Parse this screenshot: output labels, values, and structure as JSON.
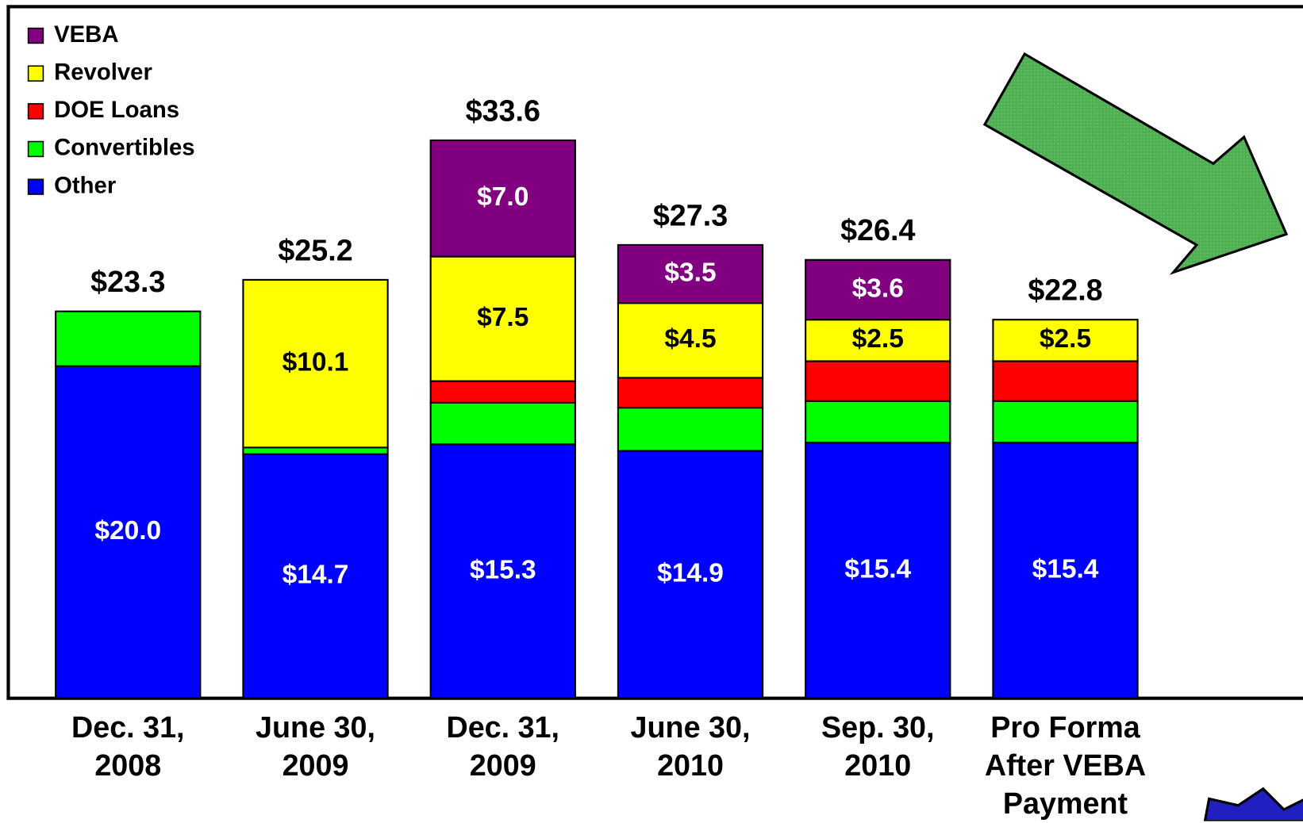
{
  "chart_data": {
    "type": "stacked_bar",
    "categories": [
      "Dec. 31, 2008",
      "June 30, 2009",
      "Dec. 31, 2009",
      "June 30, 2010",
      "Sep. 30, 2010",
      "Pro Forma After VEBA Payment"
    ],
    "series": [
      {
        "name": "Other",
        "color": "#0000ff",
        "values": [
          20.0,
          14.7,
          15.3,
          14.9,
          15.4,
          15.4
        ],
        "value_labels": [
          "$20.0",
          "$14.7",
          "$15.3",
          "$14.9",
          "$15.4",
          "$15.4"
        ]
      },
      {
        "name": "Convertibles",
        "color": "#00ff00",
        "values": [
          3.3,
          0.4,
          2.5,
          2.6,
          2.5,
          2.5
        ],
        "value_labels": [
          null,
          null,
          null,
          null,
          null,
          null
        ]
      },
      {
        "name": "DOE Loans",
        "color": "#ff0000",
        "values": [
          null,
          null,
          1.3,
          1.8,
          2.4,
          2.4
        ],
        "value_labels": [
          null,
          null,
          null,
          null,
          null,
          null
        ]
      },
      {
        "name": "Revolver",
        "color": "#ffff00",
        "values": [
          null,
          10.1,
          7.5,
          4.5,
          2.5,
          2.5
        ],
        "value_labels": [
          null,
          "$10.1",
          "$7.5",
          "$4.5",
          "$2.5",
          "$2.5"
        ]
      },
      {
        "name": "VEBA",
        "color": "#800080",
        "values": [
          null,
          null,
          7.0,
          3.5,
          3.6,
          null
        ],
        "value_labels": [
          null,
          null,
          "$7.0",
          "$3.5",
          "$3.6",
          null
        ]
      }
    ],
    "totals": [
      23.3,
      25.2,
      33.6,
      27.3,
      26.4,
      22.8
    ],
    "total_labels": [
      "$23.3",
      "$25.2",
      "$33.6",
      "$27.3",
      "$26.4",
      "$22.8"
    ],
    "legend": "top-left"
  }
}
